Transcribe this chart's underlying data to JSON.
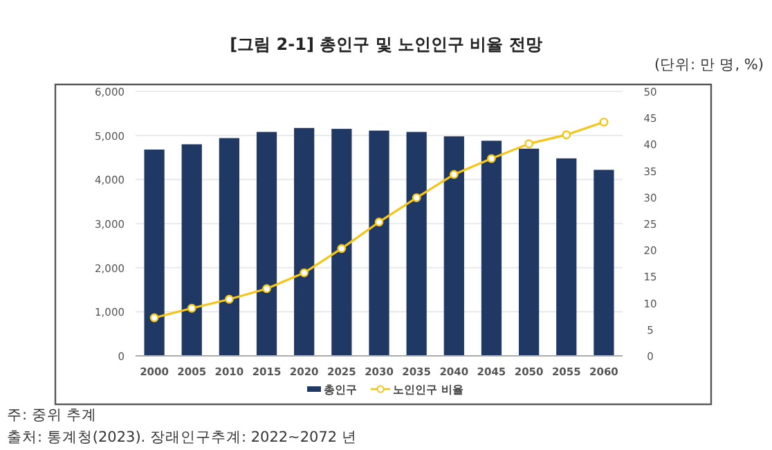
{
  "chart_data": {
    "type": "bar",
    "title": "[그림 2-1]  총인구 및 노인인구 비율 전망",
    "categories": [
      "2000",
      "2005",
      "2010",
      "2015",
      "2020",
      "2025",
      "2030",
      "2035",
      "2040",
      "2045",
      "2050",
      "2055",
      "2060"
    ],
    "series": [
      {
        "name": "총인구",
        "color": "#1f3864",
        "values": [
          4680,
          4800,
          4940,
          5080,
          5170,
          5150,
          5110,
          5080,
          4980,
          4880,
          4700,
          4480,
          4220
        ]
      },
      {
        "name": "노인인구 비율",
        "type": "line",
        "axis": "y2",
        "color": "#f5c518",
        "marker": "circle",
        "values": [
          7.2,
          9.0,
          10.7,
          12.7,
          15.7,
          20.3,
          25.3,
          29.9,
          34.3,
          37.3,
          40.1,
          41.8,
          44.2
        ]
      }
    ],
    "ylim": [
      0,
      6000
    ],
    "yticks": [
      {
        "value": 0,
        "label": "0"
      },
      {
        "value": 1000,
        "label": "1,000"
      },
      {
        "value": 2000,
        "label": "2,000"
      },
      {
        "value": 3000,
        "label": "3,000"
      },
      {
        "value": 4000,
        "label": "4,000"
      },
      {
        "value": 5000,
        "label": "5,000"
      },
      {
        "value": 6000,
        "label": "6,000"
      }
    ],
    "y2lim": [
      0,
      50
    ],
    "y2ticks": [
      0,
      5,
      10,
      15,
      20,
      25,
      30,
      35,
      40,
      45,
      50
    ],
    "grid": "y",
    "legend": "bottom",
    "annotations": [
      "(단위: 만 명, %)",
      "주: 중위 추계",
      "출처: 통계청(2023). 장래인구추계: 2022~2072 년"
    ]
  }
}
